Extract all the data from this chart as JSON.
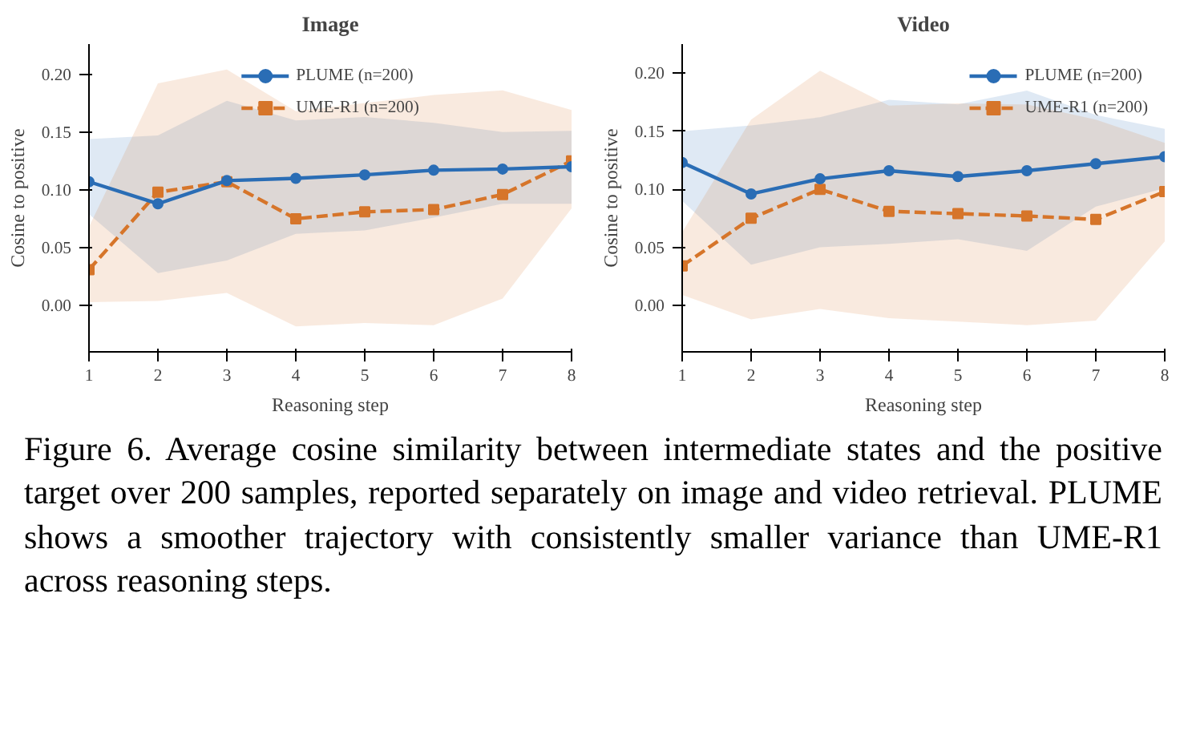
{
  "chart_data": [
    {
      "type": "line",
      "title": "Image",
      "xlabel": "Reasoning step",
      "ylabel": "Cosine to positive",
      "x": [
        1,
        2,
        3,
        4,
        5,
        6,
        7,
        8
      ],
      "xlim": [
        1,
        8
      ],
      "xticks": [
        1,
        2,
        3,
        4,
        5,
        6,
        7,
        8
      ],
      "ylim": [
        -0.04,
        0.226
      ],
      "yticks": [
        {
          "value": 0,
          "label": "0.00"
        },
        {
          "value": 0.05,
          "label": "0.05"
        },
        {
          "value": 0.1,
          "label": "0.10"
        },
        {
          "value": 0.15,
          "label": "0.15"
        },
        {
          "value": 0.2,
          "label": "0.20"
        }
      ],
      "legend": "top",
      "series": [
        {
          "name": "PLUME (n=200)",
          "color": "#2a6db5",
          "marker": "circle",
          "line_style": "solid",
          "values": [
            0.107,
            0.088,
            0.108,
            0.11,
            0.113,
            0.117,
            0.118,
            0.12
          ],
          "lower": [
            0.079,
            0.028,
            0.039,
            0.062,
            0.065,
            0.076,
            0.088,
            0.088
          ],
          "upper": [
            0.144,
            0.147,
            0.177,
            0.16,
            0.163,
            0.158,
            0.15,
            0.151
          ]
        },
        {
          "name": "UME-R1 (n=200)",
          "color": "#d6752a",
          "marker": "square",
          "line_style": "dashed",
          "values": [
            0.031,
            0.098,
            0.107,
            0.075,
            0.081,
            0.083,
            0.096,
            0.125
          ],
          "lower": [
            0.003,
            0.004,
            0.011,
            -0.018,
            -0.015,
            -0.017,
            0.006,
            0.084
          ],
          "upper": [
            0.068,
            0.192,
            0.204,
            0.168,
            0.175,
            0.182,
            0.186,
            0.169
          ]
        }
      ]
    },
    {
      "type": "line",
      "title": "Video",
      "xlabel": "Reasoning step",
      "ylabel": "Cosine to positive",
      "x": [
        1,
        2,
        3,
        4,
        5,
        6,
        7,
        8
      ],
      "xlim": [
        1,
        8
      ],
      "xticks": [
        1,
        2,
        3,
        4,
        5,
        6,
        7,
        8
      ],
      "ylim": [
        -0.04,
        0.225
      ],
      "yticks": [
        {
          "value": 0,
          "label": "0.00"
        },
        {
          "value": 0.05,
          "label": "0.05"
        },
        {
          "value": 0.1,
          "label": "0.10"
        },
        {
          "value": 0.15,
          "label": "0.15"
        },
        {
          "value": 0.2,
          "label": "0.20"
        }
      ],
      "legend": "top right",
      "series": [
        {
          "name": "PLUME (n=200)",
          "color": "#2a6db5",
          "marker": "circle",
          "line_style": "solid",
          "values": [
            0.123,
            0.096,
            0.109,
            0.116,
            0.111,
            0.116,
            0.122,
            0.128
          ],
          "lower": [
            0.09,
            0.035,
            0.05,
            0.053,
            0.057,
            0.047,
            0.085,
            0.101
          ],
          "upper": [
            0.15,
            0.155,
            0.162,
            0.177,
            0.173,
            0.185,
            0.164,
            0.152
          ]
        },
        {
          "name": "UME-R1 (n=200)",
          "color": "#d6752a",
          "marker": "square",
          "line_style": "dashed",
          "values": [
            0.034,
            0.075,
            0.1,
            0.081,
            0.079,
            0.077,
            0.074,
            0.098
          ],
          "lower": [
            0.009,
            -0.012,
            -0.003,
            -0.011,
            -0.014,
            -0.017,
            -0.013,
            0.055
          ],
          "upper": [
            0.063,
            0.16,
            0.202,
            0.172,
            0.174,
            0.173,
            0.16,
            0.14
          ]
        }
      ],
      "annotations": [
        "Figure 6.  Average cosine similarity between intermediate states and the positive target over 200 samples, reported separately on image and video retrieval.  PLUME shows a smoother trajectory with consistently smaller variance than UME-R1 across reasoning steps."
      ]
    }
  ]
}
